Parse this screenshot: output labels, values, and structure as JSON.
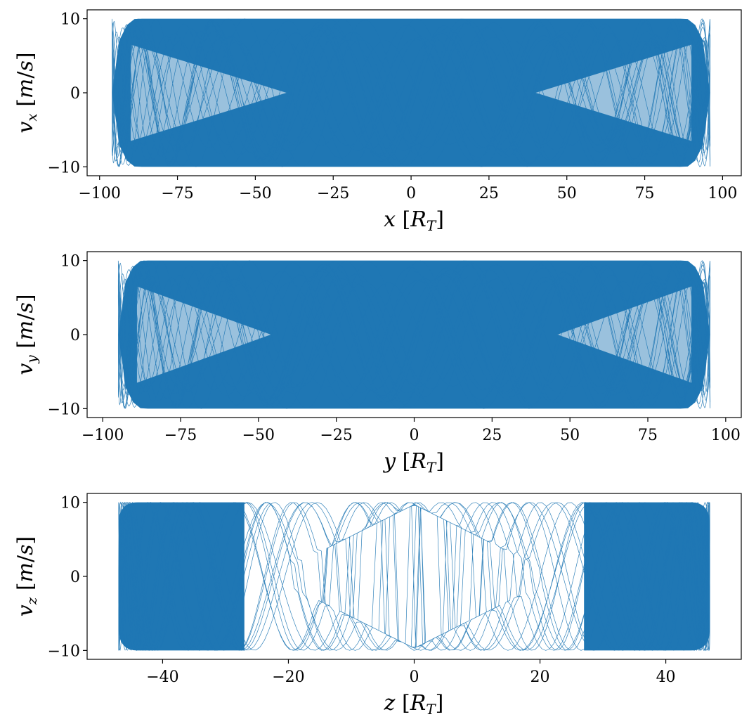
{
  "chart_data": [
    {
      "type": "line",
      "panel": "vx-vs-x",
      "xlabel": "x [R_T]",
      "ylabel": "v_x [m/s]",
      "xlim": [
        -104,
        106
      ],
      "ylim": [
        -11.2,
        11.2
      ],
      "x_ticks": [
        -100,
        -75,
        -50,
        -25,
        0,
        25,
        50,
        75,
        100
      ],
      "x_tick_labels": [
        "−100",
        "−75",
        "−50",
        "−25",
        "0",
        "25",
        "50",
        "75",
        "100"
      ],
      "y_ticks": [
        -10,
        0,
        10
      ],
      "y_tick_labels": [
        "−10",
        "0",
        "10"
      ],
      "envelope": {
        "x_extent": [
          -96,
          96
        ],
        "v_amplitude": 10,
        "inner_hole_x": [
          -40,
          40
        ]
      },
      "series_color": "#1f77b4",
      "grid": false
    },
    {
      "type": "line",
      "panel": "vy-vs-y",
      "xlabel": "y [R_T]",
      "ylabel": "v_y [m/s]",
      "xlim": [
        -105,
        105
      ],
      "ylim": [
        -11.2,
        11.2
      ],
      "x_ticks": [
        -100,
        -75,
        -50,
        -25,
        0,
        25,
        50,
        75,
        100
      ],
      "x_tick_labels": [
        "−100",
        "−75",
        "−50",
        "−25",
        "0",
        "25",
        "50",
        "75",
        "100"
      ],
      "y_ticks": [
        -10,
        0,
        10
      ],
      "y_tick_labels": [
        "−10",
        "0",
        "10"
      ],
      "envelope": {
        "x_extent": [
          -95,
          95
        ],
        "v_amplitude": 10,
        "inner_hole_x": [
          -46,
          46
        ]
      },
      "series_color": "#1f77b4",
      "grid": false
    },
    {
      "type": "line",
      "panel": "vz-vs-z",
      "xlabel": "z [R_T]",
      "ylabel": "v_z [m/s]",
      "xlim": [
        -52,
        52
      ],
      "ylim": [
        -11.2,
        11.2
      ],
      "x_ticks": [
        -40,
        -20,
        0,
        20,
        40
      ],
      "x_tick_labels": [
        "−40",
        "−20",
        "0",
        "20",
        "40"
      ],
      "y_ticks": [
        -10,
        0,
        10
      ],
      "y_tick_labels": [
        "−10",
        "0",
        "10"
      ],
      "envelope": {
        "x_extent": [
          -47,
          47
        ],
        "v_amplitude": 10,
        "solid_band_abs_x": [
          27,
          47
        ],
        "empty_core_half_width": 20
      },
      "series_color": "#1f77b4",
      "grid": false
    }
  ]
}
